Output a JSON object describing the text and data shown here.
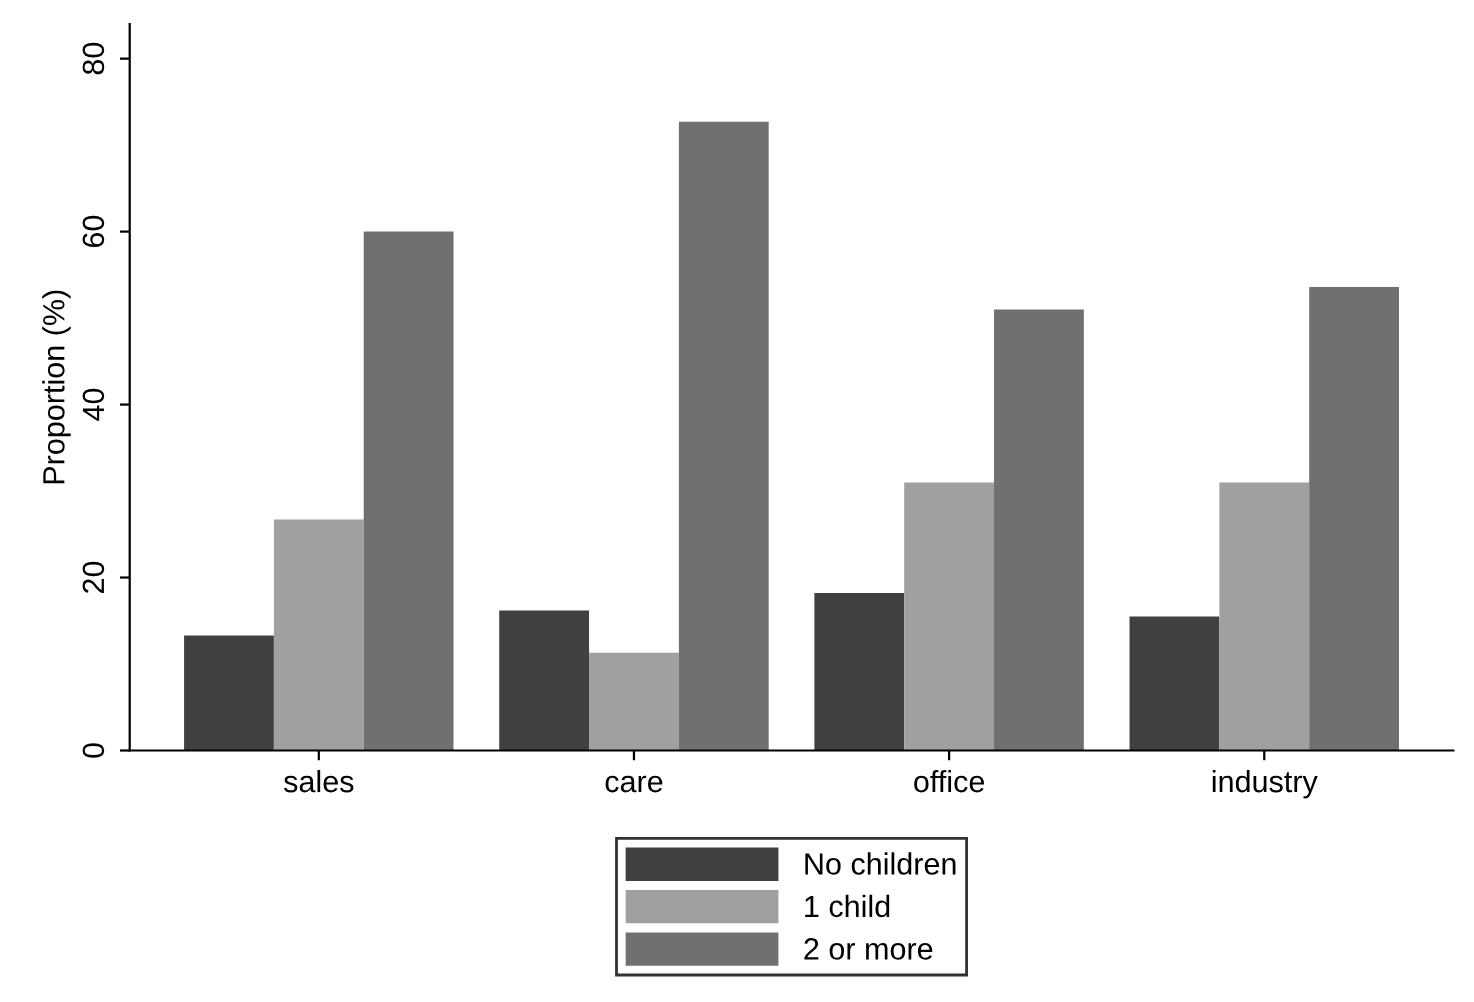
{
  "chart_data": {
    "type": "bar",
    "ylabel": "Proportion (%)",
    "categories": [
      "sales",
      "care",
      "office",
      "industry"
    ],
    "series": [
      {
        "name": "No children",
        "color": "#404040",
        "values": [
          13.3,
          16.2,
          18.2,
          15.5
        ]
      },
      {
        "name": "1 child",
        "color": "#a0a0a0",
        "values": [
          26.7,
          11.3,
          31.0,
          31.0
        ]
      },
      {
        "name": "2 or more",
        "color": "#707070",
        "values": [
          60.0,
          72.7,
          51.0,
          53.6
        ]
      }
    ],
    "ylim": [
      0,
      84
    ],
    "yticks": [
      0,
      20,
      40,
      60,
      80
    ],
    "grid": false,
    "legend": "bottom"
  }
}
